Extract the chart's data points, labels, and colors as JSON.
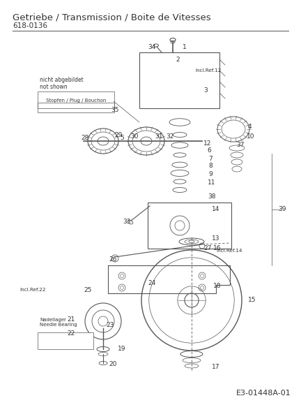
{
  "title": "Getriebe / Transmission / Boite de Vitesses",
  "subtitle": "618-0136",
  "diagram_code": "E3-01448A-01",
  "bg_color": "#ffffff",
  "line_color": "#555555",
  "text_color": "#333333",
  "title_fontsize": 9.5,
  "subtitle_fontsize": 7.5,
  "code_fontsize": 8,
  "label_fontsize": 6.5,
  "fig_w": 4.32,
  "fig_h": 6.0,
  "dpi": 100
}
